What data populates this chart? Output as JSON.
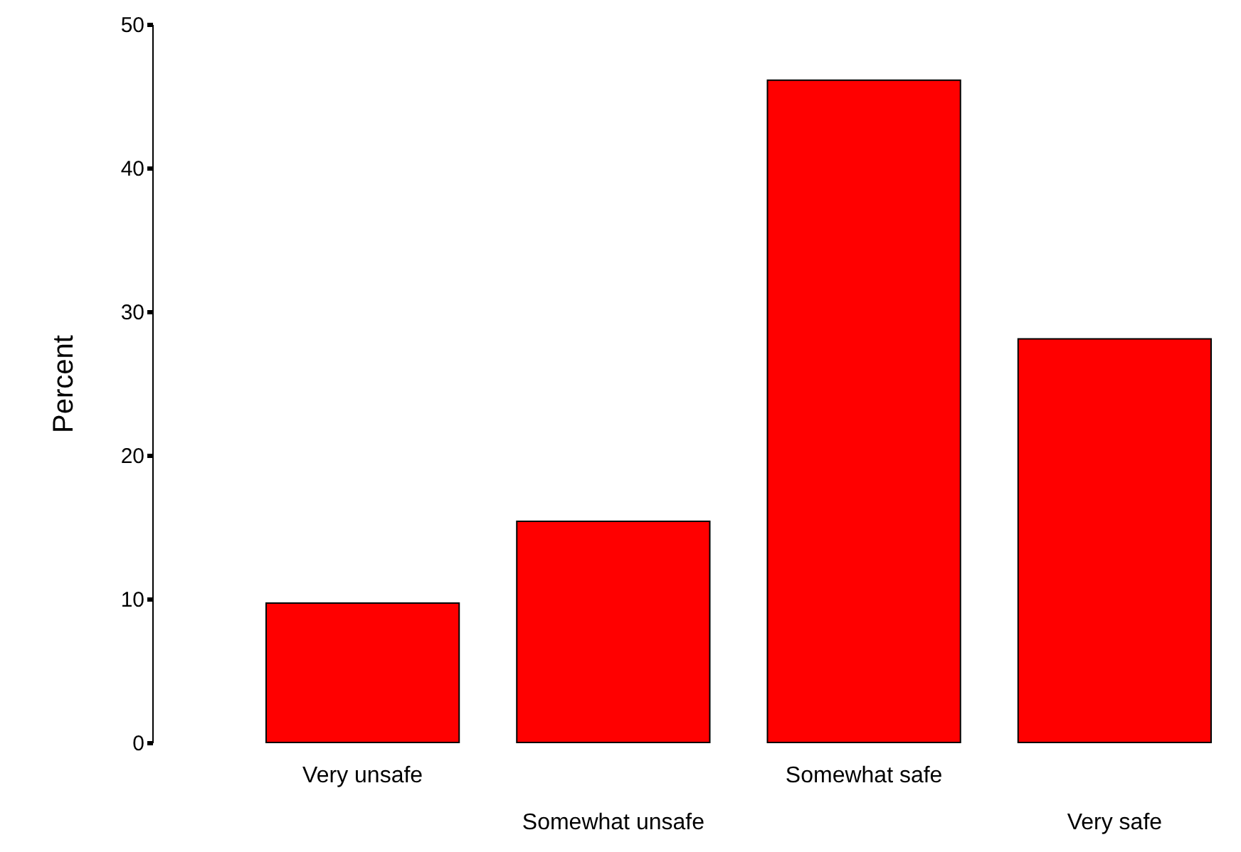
{
  "chart_data": {
    "type": "bar",
    "categories": [
      "Very unsafe",
      "Somewhat unsafe",
      "Somewhat safe",
      "Very safe"
    ],
    "values": [
      9.7,
      15.4,
      46.1,
      28.1
    ],
    "color": "#ff0000",
    "ylabel": "Percent",
    "ylim": [
      0,
      50
    ],
    "yticks": [
      0,
      10,
      20,
      30,
      40,
      50
    ],
    "grid": false
  }
}
